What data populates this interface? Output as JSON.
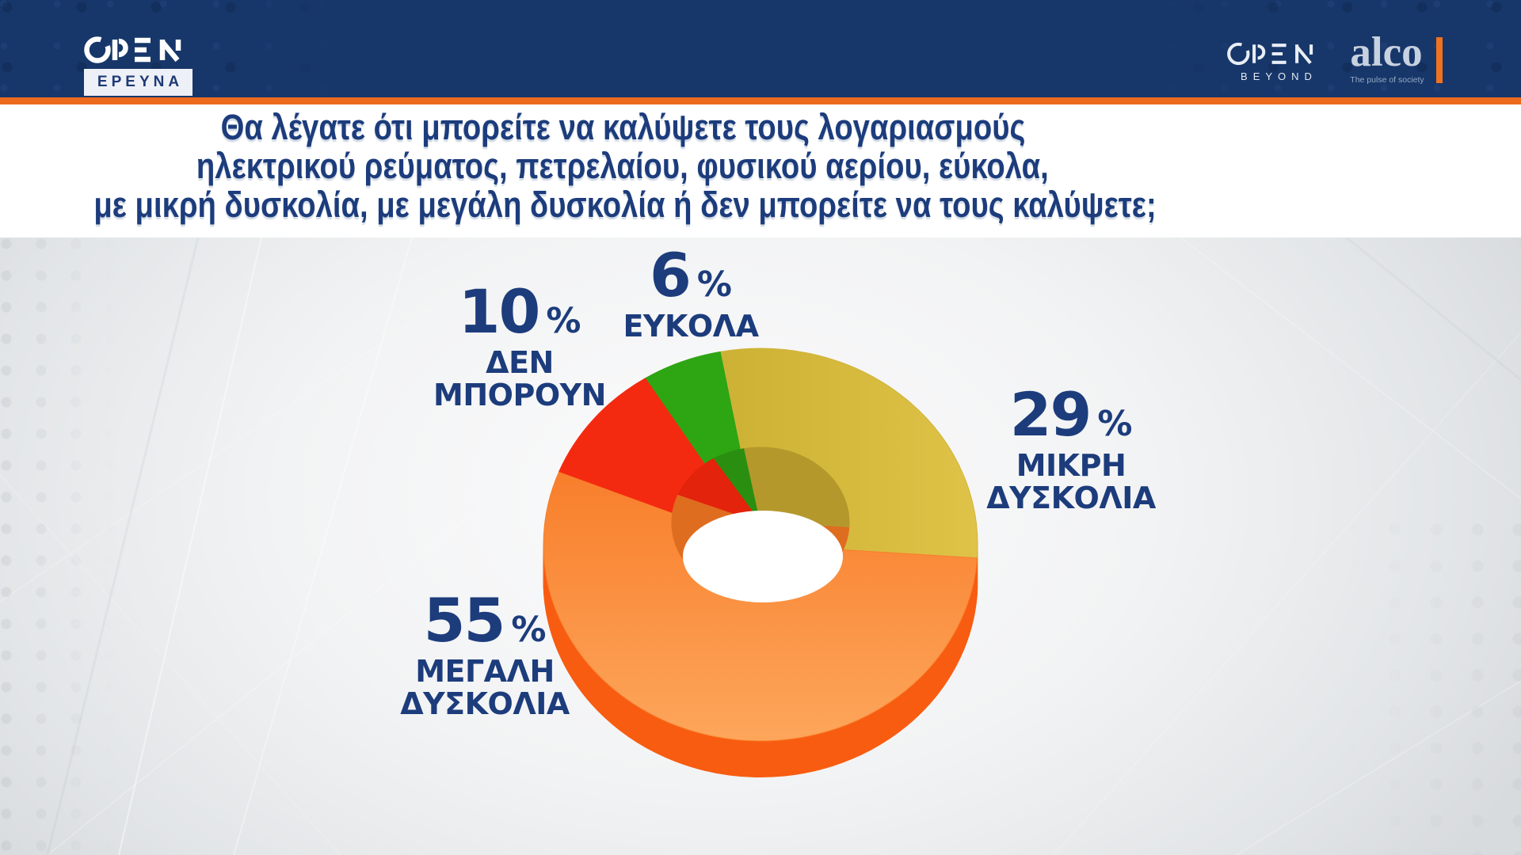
{
  "header": {
    "left": {
      "brand": "OPEN",
      "tag": "ΕΡΕΥΝΑ"
    },
    "right": {
      "brand": "OPEN",
      "sub": "BEYOND",
      "partner": "alco",
      "partner_tagline": "The pulse of society"
    },
    "colors": {
      "bar": "#17376a",
      "accent": "#ec6a1d"
    }
  },
  "title": {
    "lines": [
      "Θα λέγατε ότι μπορείτε να καλύψετε τους λογαριασμούς",
      "ηλεκτρικού ρεύματος, πετρελαίου, φυσικού αερίου, εύκολα,",
      "με μικρή δυσκολία, με μεγάλη δυσκολία ή δεν μπορείτε να τους καλύψετε;"
    ],
    "color": "#1c3c7c"
  },
  "chart_data": {
    "type": "pie",
    "donut": true,
    "title": "Θα λέγατε ότι μπορείτε να καλύψετε τους λογαριασμούς ηλεκτρικού ρεύματος, πετρελαίου, φυσικού αερίου, εύκολα, με μικρή δυσκολία, με μεγάλη δυσκολία ή δεν μπορείτε να τους καλύψετε;",
    "unit": "%",
    "start_angle_deg": -32.1,
    "legend_position": "callouts",
    "style_3d": true,
    "segments": [
      {
        "label": "ΕΥΚΟΛΑ",
        "value": 6,
        "color": "#2ea513",
        "side": "#27910e",
        "wall": "#2a8f10"
      },
      {
        "label": "ΜΙΚΡΗ ΔΥΣΚΟΛΙΑ",
        "value": 29,
        "color": "#d2b43a",
        "gradient": {
          "dir": "h",
          "from": "#ccb134",
          "to": "#dfc348"
        },
        "side": "#c5a833",
        "wall": "#b5982c"
      },
      {
        "label": "ΜΕΓΑΛΗ ΔΥΣΚΟΛΙΑ",
        "value": 55,
        "color": "#f8802c",
        "gradient": {
          "dir": "v",
          "from": "#f87e2b",
          "to": "#fda65b"
        },
        "side": "#f85c11",
        "wall": "#df6d20"
      },
      {
        "label": "ΔΕΝ ΜΠΟΡΟΥΝ",
        "value": 10,
        "color": "#f42a10",
        "side": "#da2108",
        "wall": "#e3230b"
      }
    ]
  },
  "callouts": {
    "eykola": {
      "value": "6",
      "unit": "%",
      "line1": "ΕΥΚΟΛΑ",
      "line2": ""
    },
    "mikri": {
      "value": "29",
      "unit": "%",
      "line1": "ΜΙΚΡΗ",
      "line2": "ΔΥΣΚΟΛΙΑ"
    },
    "megali": {
      "value": "55",
      "unit": "%",
      "line1": "ΜΕΓΑΛΗ",
      "line2": "ΔΥΣΚΟΛΙΑ"
    },
    "den_mporoyn": {
      "value": "10",
      "unit": "%",
      "line1": "ΔΕΝ",
      "line2": "ΜΠΟΡΟΥΝ"
    }
  }
}
